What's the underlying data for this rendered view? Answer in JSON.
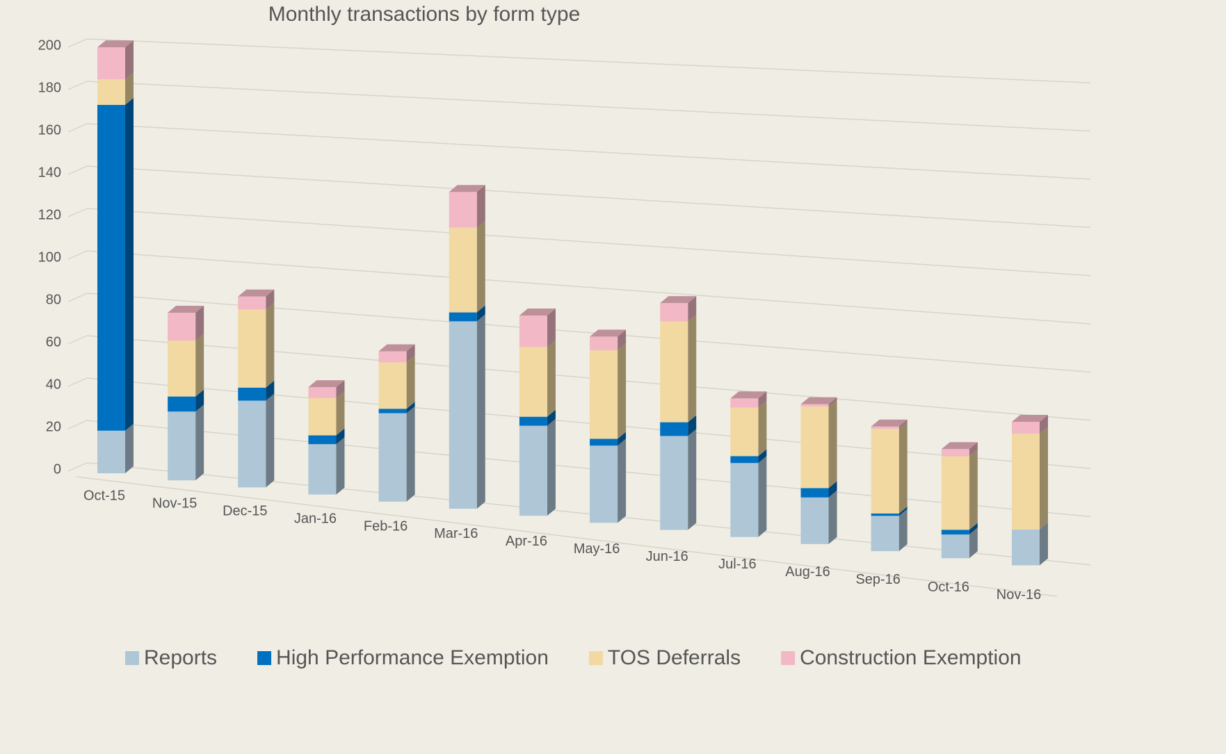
{
  "chart_data": {
    "type": "bar3d_stacked",
    "title": "Monthly transactions by form type",
    "categories": [
      "Oct-15",
      "Nov-15",
      "Dec-15",
      "Jan-16",
      "Feb-16",
      "Mar-16",
      "Apr-16",
      "May-16",
      "Jun-16",
      "Jul-16",
      "Aug-16",
      "Sep-16",
      "Oct-16",
      "Nov-16"
    ],
    "series": [
      {
        "name": "Reports",
        "color": "#aec6d6",
        "values": [
          20,
          32,
          40,
          23,
          40,
          84,
          40,
          34,
          41,
          32,
          20,
          15,
          10,
          15
        ]
      },
      {
        "name": "High Performance Exemption",
        "color": "#0070c0",
        "values": [
          153,
          7,
          6,
          4,
          2,
          4,
          4,
          3,
          6,
          3,
          4,
          1,
          2,
          0
        ]
      },
      {
        "name": "TOS Deferrals",
        "color": "#f2d9a2",
        "values": [
          12,
          26,
          36,
          17,
          21,
          38,
          31,
          39,
          44,
          21,
          35,
          36,
          31,
          40
        ]
      },
      {
        "name": "Construction Exemption",
        "color": "#f2b8c6",
        "values": [
          15,
          13,
          6,
          5,
          5,
          16,
          14,
          6,
          8,
          4,
          1,
          1,
          3,
          5
        ]
      }
    ],
    "ylim": [
      0,
      200
    ],
    "yticks": [
      0,
      20,
      40,
      60,
      80,
      100,
      120,
      140,
      160,
      180,
      200
    ],
    "grid": true,
    "legend": "bottom"
  }
}
